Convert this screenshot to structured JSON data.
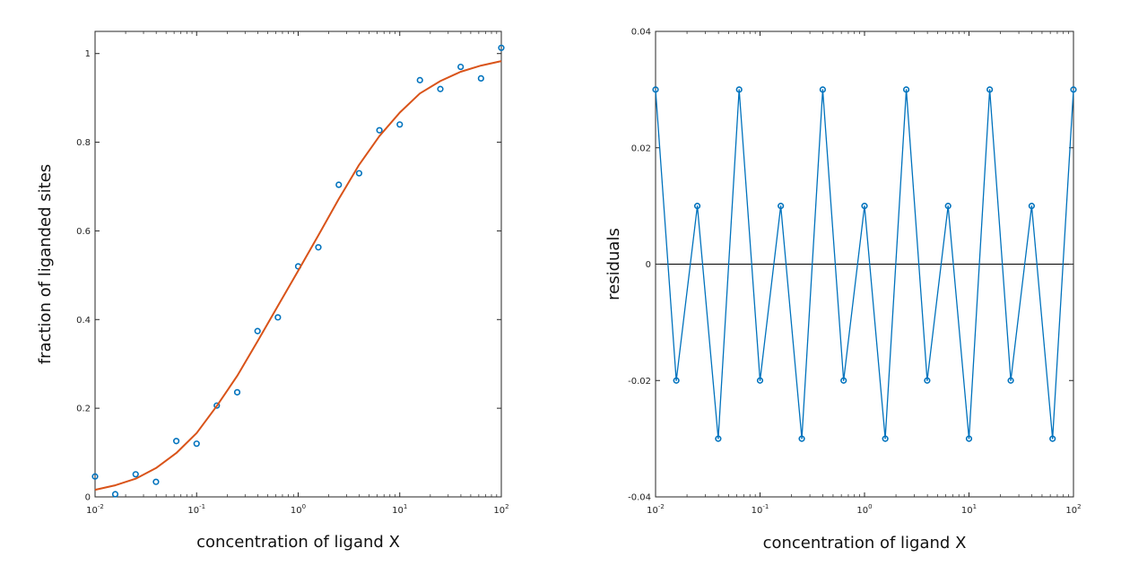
{
  "chart_data": [
    {
      "type": "scatter",
      "xscale": "log",
      "xlim": [
        0.01,
        100
      ],
      "ylim": [
        0,
        1.05
      ],
      "xlabel": "concentration of ligand X",
      "ylabel": "fraction of liganded sites",
      "xticks": [
        0.01,
        0.1,
        1,
        10,
        100
      ],
      "xtick_labels": [
        {
          "base": "10",
          "exp": "-2"
        },
        {
          "base": "10",
          "exp": "-1"
        },
        {
          "base": "10",
          "exp": "0"
        },
        {
          "base": "10",
          "exp": "1"
        },
        {
          "base": "10",
          "exp": "2"
        }
      ],
      "yticks": [
        0,
        0.2,
        0.4,
        0.6,
        0.8,
        1
      ],
      "ytick_labels": [
        "0",
        "0.2",
        "0.4",
        "0.6",
        "0.8",
        "1"
      ],
      "grid": false,
      "series": [
        {
          "kind": "markers",
          "marker": "circle",
          "color": "#0072bd",
          "x": [
            0.01,
            0.0158,
            0.0251,
            0.0398,
            0.0631,
            0.1,
            0.158,
            0.251,
            0.398,
            0.631,
            1,
            1.58,
            2.51,
            3.98,
            6.31,
            10,
            15.8,
            25.1,
            39.8,
            63.1,
            100
          ],
          "y": [
            0.046,
            0.006,
            0.051,
            0.034,
            0.126,
            0.12,
            0.206,
            0.236,
            0.374,
            0.405,
            0.52,
            0.563,
            0.704,
            0.73,
            0.827,
            0.84,
            0.94,
            0.92,
            0.97,
            0.944,
            1.013
          ]
        },
        {
          "kind": "line",
          "color": "#d95319",
          "x": [
            0.01,
            0.0158,
            0.0251,
            0.0398,
            0.0631,
            0.1,
            0.158,
            0.251,
            0.398,
            0.631,
            1,
            1.58,
            2.51,
            3.98,
            6.31,
            10,
            15.8,
            25.1,
            39.8,
            63.1,
            100
          ],
          "y": [
            0.016,
            0.026,
            0.041,
            0.065,
            0.099,
            0.144,
            0.205,
            0.273,
            0.351,
            0.431,
            0.51,
            0.59,
            0.672,
            0.749,
            0.814,
            0.867,
            0.91,
            0.938,
            0.959,
            0.973,
            0.983
          ]
        }
      ]
    },
    {
      "type": "line",
      "xscale": "log",
      "xlim": [
        0.01,
        100
      ],
      "ylim": [
        -0.04,
        0.04
      ],
      "xlabel": "concentration of ligand X",
      "ylabel": "residuals",
      "xticks": [
        0.01,
        0.1,
        1,
        10,
        100
      ],
      "xtick_labels": [
        {
          "base": "10",
          "exp": "-2"
        },
        {
          "base": "10",
          "exp": "-1"
        },
        {
          "base": "10",
          "exp": "0"
        },
        {
          "base": "10",
          "exp": "1"
        },
        {
          "base": "10",
          "exp": "2"
        }
      ],
      "yticks": [
        -0.04,
        -0.02,
        0,
        0.02,
        0.04
      ],
      "ytick_labels": [
        "-0.04",
        "-0.02",
        "0",
        "0.02",
        "0.04"
      ],
      "grid": false,
      "zero_line": {
        "y": 0,
        "color": "#000000"
      },
      "series": [
        {
          "kind": "line+markers",
          "marker": "circle",
          "color": "#0072bd",
          "x": [
            0.01,
            0.0158,
            0.0251,
            0.0398,
            0.0631,
            0.1,
            0.158,
            0.251,
            0.398,
            0.631,
            1,
            1.58,
            2.51,
            3.98,
            6.31,
            10,
            15.8,
            25.1,
            39.8,
            63.1,
            100
          ],
          "y": [
            0.03,
            -0.02,
            0.01,
            -0.03,
            0.03,
            -0.02,
            0.01,
            -0.03,
            0.03,
            -0.02,
            0.01,
            -0.03,
            0.03,
            -0.02,
            0.01,
            -0.03,
            0.03,
            -0.02,
            0.01,
            -0.03,
            0.03
          ]
        }
      ]
    }
  ]
}
